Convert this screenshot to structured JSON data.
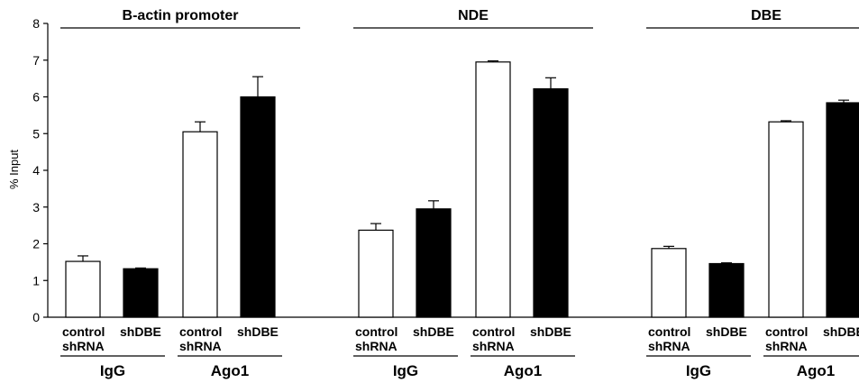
{
  "chart_data": {
    "type": "bar",
    "ylabel": "% Input",
    "ylim": [
      0,
      8
    ],
    "yticks": [
      0,
      1,
      2,
      3,
      4,
      5,
      6,
      7,
      8
    ],
    "grid": false,
    "legend": "none",
    "colors": {
      "control": "#ffffff",
      "shDBE": "#000000",
      "outline": "#000000"
    },
    "groups": [
      {
        "title": "B-actin promoter",
        "antibodies": [
          {
            "name": "IgG",
            "bars": [
              {
                "label": [
                  "control",
                  "shRNA"
                ],
                "value": 1.52,
                "error": 0.15,
                "fill": "control"
              },
              {
                "label": [
                  "shDBE"
                ],
                "value": 1.32,
                "error": 0.02,
                "fill": "shDBE"
              }
            ]
          },
          {
            "name": "Ago1",
            "bars": [
              {
                "label": [
                  "control",
                  "shRNA"
                ],
                "value": 5.05,
                "error": 0.27,
                "fill": "control"
              },
              {
                "label": [
                  "shDBE"
                ],
                "value": 6.0,
                "error": 0.55,
                "fill": "shDBE"
              }
            ]
          }
        ]
      },
      {
        "title": "NDE",
        "antibodies": [
          {
            "name": "IgG",
            "bars": [
              {
                "label": [
                  "control",
                  "shRNA"
                ],
                "value": 2.37,
                "error": 0.18,
                "fill": "control"
              },
              {
                "label": [
                  "shDBE"
                ],
                "value": 2.95,
                "error": 0.22,
                "fill": "shDBE"
              }
            ]
          },
          {
            "name": "Ago1",
            "bars": [
              {
                "label": [
                  "control",
                  "shRNA"
                ],
                "value": 6.95,
                "error": 0.03,
                "fill": "control"
              },
              {
                "label": [
                  "shDBE"
                ],
                "value": 6.22,
                "error": 0.3,
                "fill": "shDBE"
              }
            ]
          }
        ]
      },
      {
        "title": "DBE",
        "antibodies": [
          {
            "name": "IgG",
            "bars": [
              {
                "label": [
                  "control",
                  "shRNA"
                ],
                "value": 1.87,
                "error": 0.06,
                "fill": "control"
              },
              {
                "label": [
                  "shDBE"
                ],
                "value": 1.46,
                "error": 0.02,
                "fill": "shDBE"
              }
            ]
          },
          {
            "name": "Ago1",
            "bars": [
              {
                "label": [
                  "control",
                  "shRNA"
                ],
                "value": 5.32,
                "error": 0.03,
                "fill": "control"
              },
              {
                "label": [
                  "shDBE"
                ],
                "value": 5.84,
                "error": 0.07,
                "fill": "shDBE"
              }
            ]
          }
        ]
      }
    ]
  }
}
